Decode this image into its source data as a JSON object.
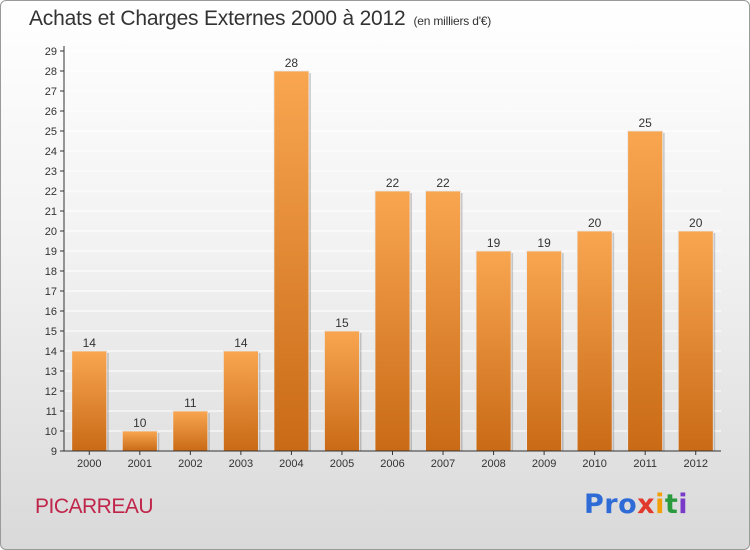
{
  "header": {
    "title": "Achats et Charges Externes 2000 à 2012",
    "subtitle": "(en milliers d'€)"
  },
  "footer": {
    "commune": "PICARREAU",
    "logo": [
      "Pro",
      "x",
      "i",
      "t",
      "i"
    ]
  },
  "colors": {
    "bar_top": "#f9a651",
    "bar_bottom": "#c96a16",
    "axis": "#333333",
    "grid": "#ffffff"
  },
  "chart_data": {
    "type": "bar",
    "title": "Achats et Charges Externes 2000 à 2012",
    "subtitle": "(en milliers d'€)",
    "categories": [
      "2000",
      "2001",
      "2002",
      "2003",
      "2004",
      "2005",
      "2006",
      "2007",
      "2008",
      "2009",
      "2010",
      "2011",
      "2012"
    ],
    "values": [
      14,
      10,
      11,
      14,
      28,
      15,
      22,
      22,
      19,
      19,
      20,
      25,
      20
    ],
    "ylim": [
      9,
      29
    ],
    "yticks": [
      9,
      10,
      11,
      12,
      13,
      14,
      15,
      16,
      17,
      18,
      19,
      20,
      21,
      22,
      23,
      24,
      25,
      26,
      27,
      28,
      29
    ],
    "xlabel": "",
    "ylabel": "",
    "grid": true,
    "data_labels": true
  }
}
